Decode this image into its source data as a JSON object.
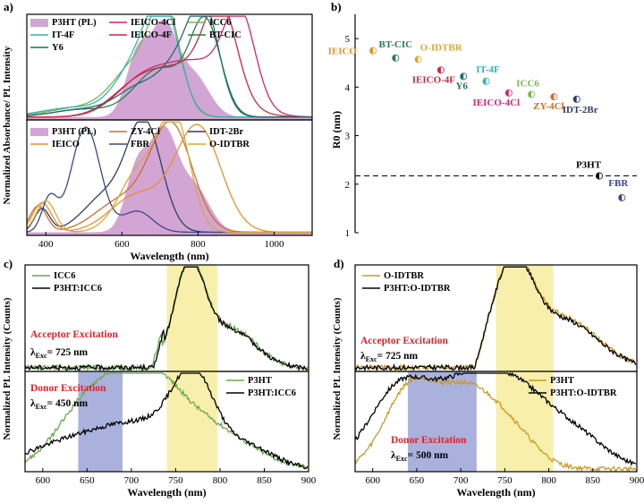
{
  "colors": {
    "p3ht_fill": "#c487c6",
    "ieico4cl": "#d6246e",
    "icc6": "#79b84d",
    "it4f": "#35b1b9",
    "ieico4f": "#c8293b",
    "btcic": "#2c7a4e",
    "y6": "#1e6e6a",
    "zy4cl": "#d36a2a",
    "idt2br": "#2e3d63",
    "ieico": "#e8902c",
    "fbr": "#3c4687",
    "oidtbr": "#d8a83a",
    "blue_box": "#9aa3d6",
    "yellow_box": "#f6ec9c",
    "red_text": "#e41e26",
    "dark_line": "#000000",
    "green_line": "#6aa84f",
    "gold_line": "#c99b24"
  },
  "chart_data": [
    {
      "id": "a_top",
      "panel_label": "a)",
      "type": "line",
      "ylabel": "Normalized Absorbance/ PL Intensity",
      "xlim": [
        350,
        1100
      ],
      "ylim": [
        0,
        1.1
      ],
      "legend": [
        "P3HT (PL)",
        "IEICO-4Cl",
        "ICC6",
        "IT-4F",
        "IEICO-4F",
        "BT-CIC",
        "Y6"
      ],
      "series": [
        {
          "name": "P3HT (PL)",
          "color_key": "p3ht_fill",
          "fill": true,
          "peaks": [
            [
              640,
              30,
              0.62
            ],
            [
              710,
              35,
              0.92
            ],
            [
              790,
              40,
              0.42
            ]
          ]
        },
        {
          "name": "IEICO-4Cl",
          "color_key": "ieico4cl",
          "peaks": [
            [
              650,
              70,
              0.32
            ],
            [
              800,
              90,
              0.55
            ],
            [
              910,
              40,
              0.9
            ]
          ]
        },
        {
          "name": "ICC6",
          "color_key": "icc6",
          "peaks": [
            [
              500,
              90,
              0.1
            ],
            [
              640,
              60,
              0.52
            ],
            [
              715,
              38,
              1.0
            ]
          ]
        },
        {
          "name": "IT-4F",
          "color_key": "it4f",
          "peaks": [
            [
              480,
              90,
              0.1
            ],
            [
              640,
              55,
              0.52
            ],
            [
              710,
              42,
              1.0
            ]
          ]
        },
        {
          "name": "IEICO-4F",
          "color_key": "ieico4f",
          "peaks": [
            [
              640,
              70,
              0.28
            ],
            [
              780,
              90,
              0.48
            ],
            [
              860,
              42,
              0.9
            ]
          ]
        },
        {
          "name": "BT-CIC",
          "color_key": "btcic",
          "peaks": [
            [
              500,
              80,
              0.08
            ],
            [
              700,
              65,
              0.5
            ],
            [
              820,
              40,
              0.95
            ]
          ]
        },
        {
          "name": "Y6",
          "color_key": "y6",
          "peaks": [
            [
              500,
              80,
              0.08
            ],
            [
              650,
              60,
              0.3
            ],
            [
              760,
              50,
              0.55
            ],
            [
              820,
              38,
              0.92
            ]
          ]
        }
      ]
    },
    {
      "id": "a_bottom",
      "type": "line",
      "xlabel": "Wavelength (nm)",
      "xlim": [
        350,
        1100
      ],
      "ylim": [
        0,
        1.1
      ],
      "xticks": [
        400,
        600,
        800,
        1000
      ],
      "legend": [
        "P3HT (PL)",
        "ZY-4Cl",
        "IDT-2Br",
        "IEICO",
        "FBR",
        "O-IDTBR"
      ],
      "series": [
        {
          "name": "P3HT (PL)",
          "color_key": "p3ht_fill",
          "fill": true,
          "peaks": [
            [
              640,
              30,
              0.6
            ],
            [
              710,
              35,
              0.92
            ],
            [
              790,
              40,
              0.42
            ]
          ]
        },
        {
          "name": "ZY-4Cl",
          "color_key": "zy4cl",
          "peaks": [
            [
              380,
              22,
              0.25
            ],
            [
              600,
              70,
              0.3
            ],
            [
              730,
              55,
              1.0
            ]
          ]
        },
        {
          "name": "IDT-2Br",
          "color_key": "idt2br",
          "peaks": [
            [
              390,
              20,
              0.22
            ],
            [
              560,
              60,
              0.35
            ],
            [
              660,
              45,
              1.0
            ]
          ]
        },
        {
          "name": "IEICO",
          "color_key": "ieico",
          "peaks": [
            [
              390,
              25,
              0.28
            ],
            [
              640,
              70,
              0.35
            ],
            [
              800,
              60,
              1.0
            ]
          ]
        },
        {
          "name": "FBR",
          "color_key": "fbr",
          "peaks": [
            [
              410,
              20,
              0.32
            ],
            [
              505,
              38,
              1.0
            ],
            [
              640,
              40,
              0.2
            ]
          ]
        },
        {
          "name": "O-IDTBR",
          "color_key": "oidtbr",
          "peaks": [
            [
              400,
              25,
              0.3
            ],
            [
              650,
              55,
              0.6
            ],
            [
              740,
              40,
              1.0
            ]
          ]
        }
      ]
    },
    {
      "id": "b",
      "panel_label": "b)",
      "type": "scatter",
      "ylabel": "R0 (nm)",
      "ylim": [
        1,
        5.5
      ],
      "yticks": [
        1,
        2,
        3,
        4,
        5
      ],
      "reference_line": {
        "y": 2.17,
        "style": "dashed"
      },
      "points": [
        {
          "label": "IEICO",
          "xi": 1,
          "y": 4.75,
          "color_key": "ieico"
        },
        {
          "label": "BT-CIC",
          "xi": 2,
          "y": 4.6,
          "color_key": "btcic"
        },
        {
          "label": "O-IDTBR",
          "xi": 3,
          "y": 4.57,
          "color_key": "oidtbr"
        },
        {
          "label": "IEICO-4F",
          "xi": 4,
          "y": 4.35,
          "color_key": "ieico4f"
        },
        {
          "label": "Y6",
          "xi": 5,
          "y": 4.22,
          "color_key": "y6"
        },
        {
          "label": "IT-4F",
          "xi": 6,
          "y": 4.12,
          "color_key": "it4f"
        },
        {
          "label": "IEICO-4Cl",
          "xi": 7,
          "y": 3.88,
          "color_key": "ieico4cl"
        },
        {
          "label": "ICC6",
          "xi": 8,
          "y": 3.85,
          "color_key": "icc6"
        },
        {
          "label": "ZY-4Cl",
          "xi": 9,
          "y": 3.8,
          "color_key": "zy4cl"
        },
        {
          "label": "IDT-2Br",
          "xi": 10,
          "y": 3.75,
          "color_key": "idt2br"
        },
        {
          "label": "P3HT",
          "xi": 11,
          "y": 2.17,
          "color_key": "dark_line"
        },
        {
          "label": "FBR",
          "xi": 12,
          "y": 1.72,
          "color_key": "fbr"
        }
      ]
    },
    {
      "id": "c_top",
      "panel_label": "c)",
      "type": "line",
      "xlim": [
        580,
        900
      ],
      "ylim": [
        0,
        1.1
      ],
      "legend": [
        "ICC6",
        "P3HT:ICC6"
      ],
      "annotation": "Acceptor Excitation",
      "exc_prefix": "λ",
      "exc_sub": "Exc",
      "exc_value": "= 725 nm",
      "highlight": {
        "color_key": "yellow_box",
        "range": [
          740,
          797
        ]
      },
      "series": [
        {
          "name": "ICC6",
          "color_key": "green_line",
          "peaks": [
            [
              765,
              17,
              1.0
            ],
            [
              810,
              30,
              0.42
            ]
          ],
          "cutoff": 735
        },
        {
          "name": "P3HT:ICC6",
          "color_key": "dark_line",
          "peaks": [
            [
              765,
              17,
              1.0
            ],
            [
              810,
              30,
              0.4
            ]
          ],
          "cutoff": 737
        }
      ]
    },
    {
      "id": "c_bottom",
      "type": "line",
      "xlabel": "Wavelength (nm)",
      "ylabel": "Normalized PL Intensity (Counts)",
      "xlim": [
        580,
        900
      ],
      "ylim": [
        0,
        1.1
      ],
      "xticks": [
        600,
        650,
        700,
        750,
        800,
        850,
        900
      ],
      "legend": [
        "P3HT",
        "P3HT:ICC6"
      ],
      "annotation": "Donor Excitation",
      "exc_prefix": "λ",
      "exc_sub": "Exc",
      "exc_value": "= 450 nm",
      "highlight_blue": {
        "color_key": "blue_box",
        "range": [
          640,
          690
        ]
      },
      "highlight": {
        "color_key": "yellow_box",
        "range": [
          740,
          797
        ]
      },
      "series": [
        {
          "name": "P3HT",
          "color_key": "green_line",
          "peaks": [
            [
              650,
              35,
              0.65
            ],
            [
              715,
              38,
              0.95
            ],
            [
              790,
              45,
              0.42
            ]
          ]
        },
        {
          "name": "P3HT:ICC6",
          "color_key": "dark_line",
          "peaks": [
            [
              650,
              60,
              0.35
            ],
            [
              720,
              40,
              0.3
            ],
            [
              770,
              24,
              0.9
            ],
            [
              830,
              30,
              0.25
            ]
          ]
        }
      ]
    },
    {
      "id": "d_top",
      "panel_label": "d)",
      "type": "line",
      "xlim": [
        580,
        900
      ],
      "ylim": [
        0,
        1.1
      ],
      "legend": [
        "O-IDTBR",
        "P3HT:O-IDTBR"
      ],
      "annotation": "Acceptor Excitation",
      "exc_prefix": "λ",
      "exc_sub": "Exc",
      "exc_value": "= 725 nm",
      "highlight": {
        "color_key": "yellow_box",
        "range": [
          740,
          805
        ]
      },
      "series": [
        {
          "name": "O-IDTBR",
          "color_key": "gold_line",
          "peaks": [
            [
              758,
              22,
              1.0
            ],
            [
              815,
              40,
              0.52
            ]
          ],
          "cutoff": 728
        },
        {
          "name": "P3HT:O-IDTBR",
          "color_key": "dark_line",
          "peaks": [
            [
              758,
              22,
              1.0
            ],
            [
              815,
              40,
              0.5
            ]
          ],
          "cutoff": 728
        }
      ]
    },
    {
      "id": "d_bottom",
      "type": "line",
      "xlabel": "Wavelength (nm)",
      "ylabel": "Normalized PL Intensity (Counts)",
      "xlim": [
        580,
        900
      ],
      "ylim": [
        0,
        1.1
      ],
      "xticks": [
        600,
        650,
        700,
        750,
        800,
        850,
        900
      ],
      "legend": [
        "P3HT",
        "P3HT:O-IDTBR"
      ],
      "annotation": "Donor Excitation",
      "exc_prefix": "λ",
      "exc_sub": "Exc",
      "exc_value": "= 500 nm",
      "highlight_blue": {
        "color_key": "blue_box",
        "range": [
          640,
          718
        ]
      },
      "highlight": {
        "color_key": "yellow_box",
        "range": [
          740,
          805
        ]
      },
      "series": [
        {
          "name": "P3HT",
          "color_key": "gold_line",
          "peaks": [
            [
              640,
              28,
              0.8
            ],
            [
              705,
              35,
              0.85
            ],
            [
              760,
              28,
              0.3
            ]
          ]
        },
        {
          "name": "P3HT:O-IDTBR",
          "color_key": "dark_line",
          "peaks": [
            [
              630,
              35,
              0.85
            ],
            [
              710,
              40,
              0.88
            ],
            [
              770,
              35,
              0.6
            ],
            [
              830,
              35,
              0.35
            ]
          ]
        }
      ]
    }
  ]
}
